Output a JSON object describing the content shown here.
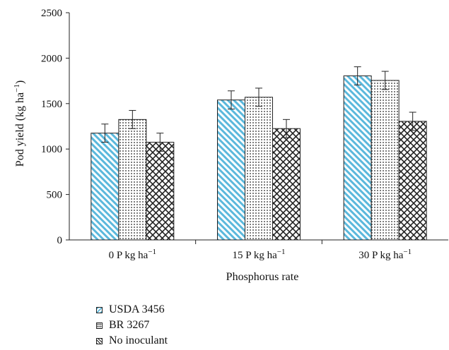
{
  "chart_data": {
    "type": "bar",
    "title": "",
    "xlabel": "Phosphorus rate",
    "ylabel_main": "Pod yield (kg ha",
    "ylabel_sup": "−1",
    "ylabel_end": ")",
    "ylim": [
      0,
      2500
    ],
    "yticks": [
      "0",
      "500",
      "1000",
      "1500",
      "2000",
      "2500"
    ],
    "categories": [
      {
        "main": "0 P kg ha",
        "sup": "−1"
      },
      {
        "main": "15 P kg ha",
        "sup": "−1"
      },
      {
        "main": "30 P kg ha",
        "sup": "−1"
      }
    ],
    "series": [
      {
        "name": "USDA 3456",
        "pattern": "diagonal-stripes",
        "color": "#5bb8dc",
        "values": [
          1175,
          1540,
          1805
        ],
        "errors": [
          100,
          100,
          100
        ]
      },
      {
        "name": "BR 3267",
        "pattern": "dots",
        "color": "#222222",
        "values": [
          1325,
          1570,
          1755
        ],
        "errors": [
          100,
          100,
          100
        ]
      },
      {
        "name": "No inoculant",
        "pattern": "cross-hatch",
        "color": "#222222",
        "values": [
          1075,
          1225,
          1305
        ],
        "errors": [
          100,
          100,
          100
        ]
      }
    ],
    "legend_position": "bottom-left",
    "grid": false
  }
}
